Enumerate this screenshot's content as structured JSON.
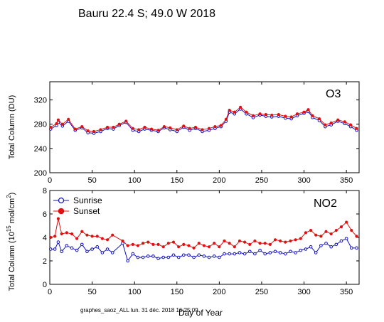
{
  "header": {
    "title": "Bauru  22.4 S; 49.0 W   2018"
  },
  "footer": {
    "caption": "graphes_saoz_ALL  lun. 31 déc. 2018 16:25:09"
  },
  "chart_data": [
    {
      "type": "line",
      "panel_label": "O3",
      "ylabel": "Total Column  (DU)",
      "xlabel": "",
      "xlim": [
        0,
        365
      ],
      "ylim": [
        200,
        350
      ],
      "x_ticks": [
        0,
        50,
        100,
        150,
        200,
        250,
        300,
        350
      ],
      "y_ticks": [
        200,
        240,
        280,
        320
      ],
      "series": [
        {
          "color": "#1010c0",
          "marker": "open-circle",
          "x": [
            1,
            8,
            10,
            15,
            22,
            30,
            38,
            45,
            52,
            60,
            68,
            75,
            82,
            90,
            98,
            105,
            112,
            120,
            128,
            135,
            142,
            150,
            158,
            165,
            172,
            180,
            188,
            195,
            202,
            208,
            212,
            218,
            225,
            232,
            240,
            248,
            255,
            262,
            270,
            278,
            285,
            292,
            300,
            305,
            310,
            318,
            325,
            332,
            340,
            348,
            355,
            362
          ],
          "y": [
            272,
            278,
            283,
            277,
            285,
            270,
            274,
            266,
            265,
            268,
            273,
            272,
            278,
            283,
            270,
            268,
            272,
            270,
            268,
            274,
            271,
            268,
            275,
            270,
            273,
            268,
            270,
            273,
            276,
            285,
            300,
            297,
            305,
            297,
            291,
            295,
            293,
            292,
            293,
            290,
            289,
            294,
            298,
            301,
            291,
            286,
            276,
            279,
            285,
            281,
            276,
            270
          ]
        },
        {
          "color": "#e01010",
          "marker": "filled-circle",
          "x": [
            1,
            8,
            10,
            15,
            22,
            30,
            38,
            45,
            52,
            60,
            68,
            75,
            82,
            90,
            98,
            105,
            112,
            120,
            128,
            135,
            142,
            150,
            158,
            165,
            172,
            180,
            188,
            195,
            202,
            208,
            212,
            218,
            225,
            232,
            240,
            248,
            255,
            262,
            270,
            278,
            285,
            292,
            300,
            305,
            310,
            318,
            325,
            332,
            340,
            348,
            355,
            362
          ],
          "y": [
            275,
            281,
            287,
            280,
            288,
            272,
            276,
            269,
            268,
            271,
            275,
            275,
            280,
            285,
            273,
            271,
            275,
            272,
            270,
            276,
            274,
            271,
            277,
            273,
            275,
            271,
            273,
            276,
            278,
            288,
            303,
            300,
            308,
            300,
            294,
            297,
            296,
            295,
            296,
            293,
            292,
            297,
            300,
            304,
            294,
            289,
            279,
            282,
            287,
            284,
            279,
            273
          ]
        }
      ]
    },
    {
      "type": "line",
      "panel_label": "NO2",
      "ylabel": "Total Column (10^15 mol/cm^2)",
      "xlabel": "Day of Year",
      "xlim": [
        0,
        365
      ],
      "ylim": [
        0,
        8
      ],
      "x_ticks": [
        0,
        50,
        100,
        150,
        200,
        250,
        300,
        350
      ],
      "y_ticks": [
        0,
        2,
        4,
        6,
        8
      ],
      "legend": {
        "position": "top-left",
        "entries": [
          "Sunrise",
          "Sunset"
        ]
      },
      "series": [
        {
          "name": "Sunrise",
          "color": "#1010c0",
          "marker": "open-circle",
          "x": [
            1,
            6,
            10,
            14,
            20,
            26,
            32,
            38,
            44,
            50,
            56,
            62,
            68,
            74,
            86,
            92,
            98,
            104,
            110,
            116,
            122,
            128,
            134,
            140,
            146,
            152,
            158,
            164,
            170,
            176,
            182,
            188,
            194,
            200,
            206,
            212,
            218,
            224,
            230,
            236,
            242,
            248,
            254,
            260,
            266,
            272,
            278,
            284,
            290,
            296,
            302,
            308,
            314,
            320,
            326,
            332,
            338,
            344,
            350,
            356,
            362
          ],
          "y": [
            3.0,
            3.0,
            3.6,
            2.8,
            3.3,
            3.1,
            2.9,
            3.4,
            2.8,
            3.0,
            3.2,
            2.7,
            3.0,
            2.7,
            3.5,
            2.0,
            2.6,
            2.3,
            2.3,
            2.4,
            2.4,
            2.2,
            2.3,
            2.3,
            2.5,
            2.3,
            2.5,
            2.5,
            2.3,
            2.5,
            2.4,
            2.3,
            2.4,
            2.3,
            2.6,
            2.6,
            2.6,
            2.7,
            2.6,
            2.8,
            2.6,
            2.9,
            2.6,
            2.7,
            2.8,
            2.7,
            2.6,
            2.8,
            2.7,
            2.9,
            3.0,
            3.2,
            2.7,
            3.3,
            3.5,
            3.2,
            3.4,
            3.7,
            3.9,
            3.1,
            3.1
          ]
        },
        {
          "name": "Sunset",
          "color": "#e01010",
          "marker": "filled-circle",
          "x": [
            1,
            6,
            10,
            14,
            20,
            26,
            32,
            38,
            44,
            50,
            56,
            62,
            68,
            74,
            86,
            92,
            98,
            104,
            110,
            116,
            122,
            128,
            134,
            140,
            146,
            152,
            158,
            164,
            170,
            176,
            182,
            188,
            194,
            200,
            206,
            212,
            218,
            224,
            230,
            236,
            242,
            248,
            254,
            260,
            266,
            272,
            278,
            284,
            290,
            296,
            302,
            308,
            314,
            320,
            326,
            332,
            338,
            344,
            350,
            356,
            362
          ],
          "y": [
            4.0,
            4.1,
            5.6,
            4.3,
            4.4,
            4.3,
            3.9,
            4.5,
            4.2,
            4.1,
            4.1,
            3.9,
            3.8,
            4.2,
            3.7,
            3.3,
            3.4,
            3.3,
            3.5,
            3.6,
            3.4,
            3.4,
            3.2,
            3.5,
            3.6,
            3.2,
            3.4,
            3.3,
            3.1,
            3.5,
            3.3,
            3.2,
            3.5,
            3.2,
            3.7,
            3.5,
            3.2,
            3.7,
            3.6,
            3.4,
            3.7,
            3.5,
            3.5,
            3.4,
            3.8,
            3.7,
            3.6,
            3.7,
            3.8,
            3.9,
            4.4,
            4.6,
            4.2,
            4.1,
            4.5,
            4.3,
            4.6,
            4.9,
            5.3,
            4.6,
            4.1
          ]
        }
      ]
    }
  ]
}
